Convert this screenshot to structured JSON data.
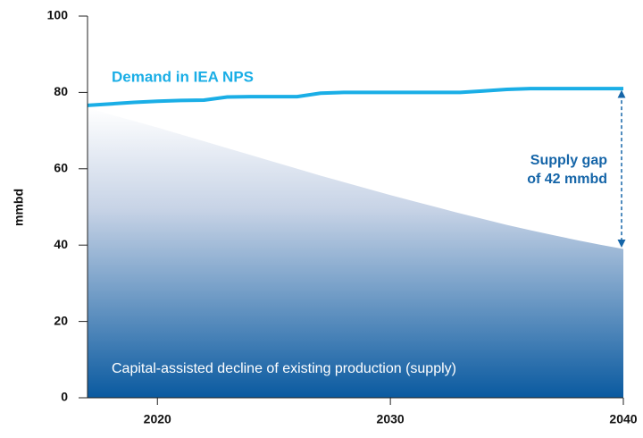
{
  "chart_data": {
    "type": "area",
    "y_label": "mmbd",
    "x": [
      2017,
      2018,
      2019,
      2020,
      2021,
      2022,
      2023,
      2024,
      2025,
      2026,
      2027,
      2028,
      2029,
      2030,
      2031,
      2032,
      2033,
      2034,
      2035,
      2036,
      2037,
      2038,
      2039,
      2040
    ],
    "series": [
      {
        "name": "Demand in IEA NPS",
        "color": "#1aaee6",
        "style": "line",
        "values": [
          76.6,
          77,
          77.4,
          77.7,
          77.9,
          78,
          78.8,
          78.9,
          78.9,
          78.9,
          79.8,
          80,
          80,
          80,
          80,
          80,
          80,
          80.4,
          80.8,
          81,
          81,
          81,
          81,
          81
        ]
      },
      {
        "name": "Capital-assisted decline of existing production (supply)",
        "color": "#0a5aa0",
        "style": "area",
        "values": [
          76,
          74.2,
          72.5,
          70.8,
          69,
          67.2,
          65.4,
          63.6,
          61.8,
          60,
          58.2,
          56.5,
          54.8,
          53.1,
          51.5,
          49.9,
          48.3,
          46.8,
          45.3,
          43.9,
          42.6,
          41.3,
          40.1,
          39
        ]
      }
    ],
    "annotations": [
      "Supply gap",
      "of 42 mmbd"
    ],
    "xlim": [
      2017,
      2040
    ],
    "xticks": [
      2020,
      2030,
      2040
    ],
    "ylim": [
      0,
      100
    ],
    "yticks": [
      0,
      20,
      40,
      60,
      80,
      100
    ]
  }
}
